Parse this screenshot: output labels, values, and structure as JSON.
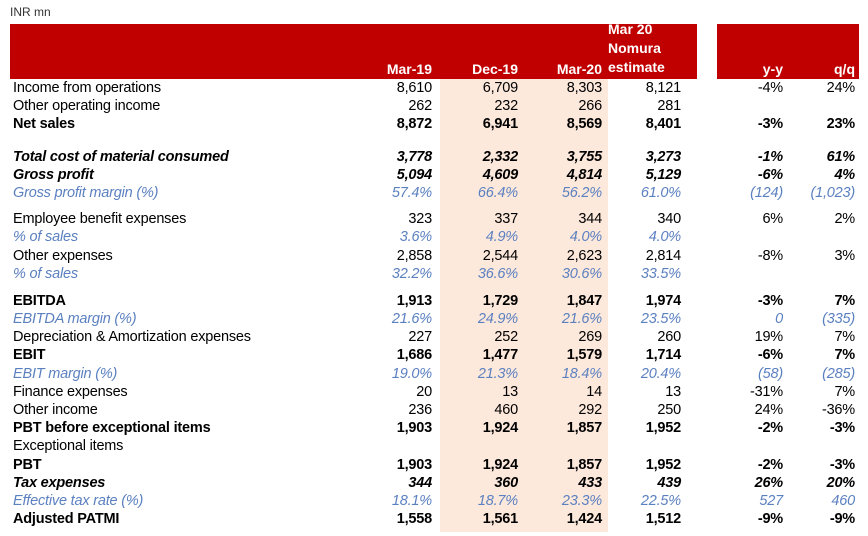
{
  "unit_label": "INR mn",
  "colors": {
    "header_bg": "#c00000",
    "shade": "#fde9dc",
    "italic_blue": "#5b80c0"
  },
  "header": {
    "columns": [
      "Mar-19",
      "Dec-19",
      "Mar-20"
    ],
    "estimate_lines": [
      "Mar 20",
      "Nomura",
      "estimate"
    ],
    "yy": "y-y",
    "qq": "q/q"
  },
  "rows": [
    {
      "label": "Income from operations",
      "values": [
        "8,610",
        "6,709",
        "8,303",
        "8,121"
      ],
      "yy": "-4%",
      "qq": "24%",
      "style": "normal"
    },
    {
      "label": "Other operating income",
      "values": [
        "262",
        "232",
        "266",
        "281"
      ],
      "yy": "",
      "qq": "",
      "style": "normal"
    },
    {
      "label": "Net sales",
      "values": [
        "8,872",
        "6,941",
        "8,569",
        "8,401"
      ],
      "yy": "-3%",
      "qq": "23%",
      "style": "bold"
    },
    {
      "label": "Total cost of material consumed",
      "values": [
        "3,778",
        "2,332",
        "3,755",
        "3,273"
      ],
      "yy": "-1%",
      "qq": "61%",
      "style": "bi"
    },
    {
      "label": "Gross profit",
      "values": [
        "5,094",
        "4,609",
        "4,814",
        "5,129"
      ],
      "yy": "-6%",
      "qq": "4%",
      "style": "bi"
    },
    {
      "label": "Gross profit margin (%)",
      "values": [
        "57.4%",
        "66.4%",
        "56.2%",
        "61.0%"
      ],
      "yy": "(124)",
      "qq": "(1,023)",
      "style": "blue"
    },
    {
      "label": "Employee benefit expenses",
      "values": [
        "323",
        "337",
        "344",
        "340"
      ],
      "yy": "6%",
      "qq": "2%",
      "style": "normal"
    },
    {
      "label": "% of sales",
      "values": [
        "3.6%",
        "4.9%",
        "4.0%",
        "4.0%"
      ],
      "yy": "",
      "qq": "",
      "style": "blue"
    },
    {
      "label": "Other expenses",
      "values": [
        "2,858",
        "2,544",
        "2,623",
        "2,814"
      ],
      "yy": "-8%",
      "qq": "3%",
      "style": "normal"
    },
    {
      "label": "% of sales",
      "values": [
        "32.2%",
        "36.6%",
        "30.6%",
        "33.5%"
      ],
      "yy": "",
      "qq": "",
      "style": "blue"
    },
    {
      "label": "EBITDA",
      "values": [
        "1,913",
        "1,729",
        "1,847",
        "1,974"
      ],
      "yy": "-3%",
      "qq": "7%",
      "style": "bold"
    },
    {
      "label": "EBITDA margin (%)",
      "values": [
        "21.6%",
        "24.9%",
        "21.6%",
        "23.5%"
      ],
      "yy": "0",
      "qq": "(335)",
      "style": "blue"
    },
    {
      "label": "Depreciation & Amortization expenses",
      "values": [
        "227",
        "252",
        "269",
        "260"
      ],
      "yy": "19%",
      "qq": "7%",
      "style": "normal"
    },
    {
      "label": "EBIT",
      "values": [
        "1,686",
        "1,477",
        "1,579",
        "1,714"
      ],
      "yy": "-6%",
      "qq": "7%",
      "style": "bold"
    },
    {
      "label": "EBIT margin (%)",
      "values": [
        "19.0%",
        "21.3%",
        "18.4%",
        "20.4%"
      ],
      "yy": "(58)",
      "qq": "(285)",
      "style": "blue"
    },
    {
      "label": "Finance expenses",
      "values": [
        "20",
        "13",
        "14",
        "13"
      ],
      "yy": "-31%",
      "qq": "7%",
      "style": "normal"
    },
    {
      "label": "Other income",
      "values": [
        "236",
        "460",
        "292",
        "250"
      ],
      "yy": "24%",
      "qq": "-36%",
      "style": "normal"
    },
    {
      "label": "PBT before exceptional items",
      "values": [
        "1,903",
        "1,924",
        "1,857",
        "1,952"
      ],
      "yy": "-2%",
      "qq": "-3%",
      "style": "bold"
    },
    {
      "label": "Exceptional items",
      "values": [
        "",
        "",
        "",
        ""
      ],
      "yy": "",
      "qq": "",
      "style": "normal"
    },
    {
      "label": "PBT",
      "values": [
        "1,903",
        "1,924",
        "1,857",
        "1,952"
      ],
      "yy": "-2%",
      "qq": "-3%",
      "style": "bold"
    },
    {
      "label": "Tax expenses",
      "values": [
        "344",
        "360",
        "433",
        "439"
      ],
      "yy": "26%",
      "qq": "20%",
      "style": "bi"
    },
    {
      "label": "Effective tax rate (%)",
      "values": [
        "18.1%",
        "18.7%",
        "23.3%",
        "22.5%"
      ],
      "yy": "527",
      "qq": "460",
      "style": "blue"
    },
    {
      "label": "Adjusted PATMI",
      "values": [
        "1,558",
        "1,561",
        "1,424",
        "1,512"
      ],
      "yy": "-9%",
      "qq": "-9%",
      "style": "bold"
    }
  ]
}
